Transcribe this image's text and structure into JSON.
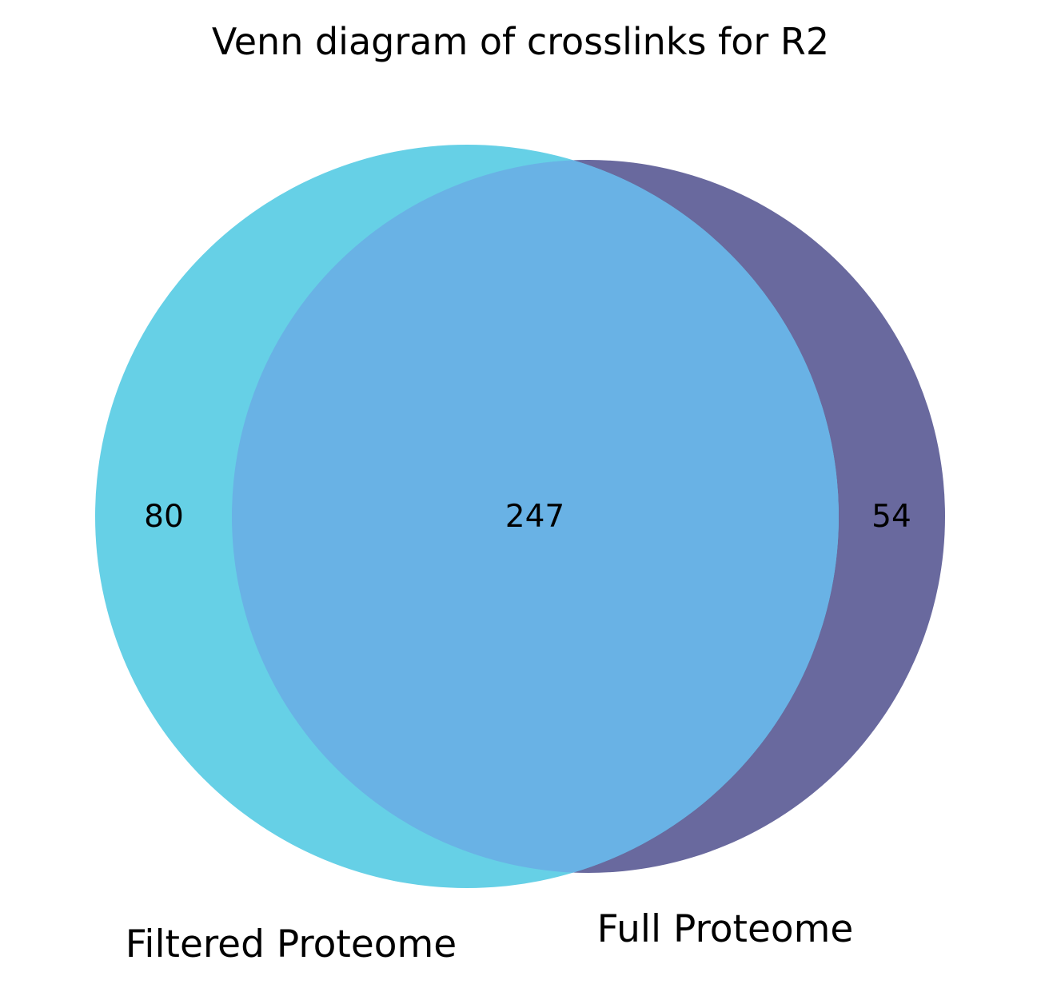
{
  "title": "Venn diagram of crosslinks for R2",
  "sets": [
    {
      "label": "Filtered Proteome",
      "only_count": "80",
      "color": "#66d0e6"
    },
    {
      "label": "Full Proteome",
      "only_count": "54",
      "color": "#69699e"
    }
  ],
  "intersection": {
    "count": "247",
    "color": "#69b2e5"
  },
  "chart_data": {
    "type": "venn",
    "title": "Venn diagram of crosslinks for R2",
    "sets": [
      "Filtered Proteome",
      "Full Proteome"
    ],
    "regions": [
      {
        "sets": [
          "Filtered Proteome"
        ],
        "value": 80
      },
      {
        "sets": [
          "Filtered Proteome",
          "Full Proteome"
        ],
        "value": 247
      },
      {
        "sets": [
          "Full Proteome"
        ],
        "value": 54
      }
    ]
  }
}
